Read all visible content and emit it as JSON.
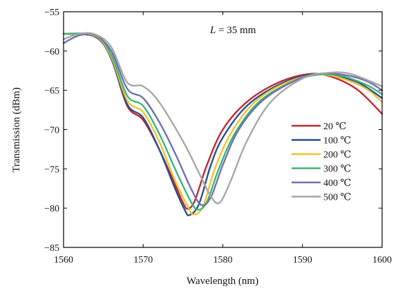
{
  "chart_data": {
    "type": "line",
    "title": "",
    "annotation": "L = 35 mm",
    "annotation_parts": {
      "var": "L",
      "rest": " = 35 mm"
    },
    "xlabel": "Wavelength (nm)",
    "ylabel": "Transmission (dBm)",
    "xlim": [
      1560,
      1600
    ],
    "ylim": [
      -85,
      -55
    ],
    "xticks": [
      1560,
      1570,
      1580,
      1590,
      1600
    ],
    "yticks": [
      -85,
      -80,
      -75,
      -70,
      -65,
      -60,
      -55
    ],
    "grid": false,
    "legend_position": "right-middle",
    "series": [
      {
        "name": "20 ℃",
        "color": "#c0282e",
        "points": [
          [
            1560,
            -57.8
          ],
          [
            1564,
            -58.2
          ],
          [
            1566,
            -61
          ],
          [
            1568,
            -67
          ],
          [
            1570,
            -68.8
          ],
          [
            1572,
            -72.5
          ],
          [
            1574,
            -77
          ],
          [
            1575,
            -79.3
          ],
          [
            1575.6,
            -80.1
          ],
          [
            1576.5,
            -79
          ],
          [
            1578,
            -74.5
          ],
          [
            1580,
            -70
          ],
          [
            1583,
            -66.5
          ],
          [
            1587,
            -64
          ],
          [
            1591,
            -62.9
          ],
          [
            1594,
            -63.4
          ],
          [
            1597,
            -65
          ],
          [
            1600,
            -68
          ]
        ]
      },
      {
        "name": "100 ℃",
        "color": "#274f8f",
        "points": [
          [
            1560,
            -57.8
          ],
          [
            1564,
            -58.2
          ],
          [
            1566,
            -61
          ],
          [
            1568,
            -66.8
          ],
          [
            1570,
            -68.5
          ],
          [
            1572,
            -72.5
          ],
          [
            1574,
            -77.5
          ],
          [
            1575.2,
            -80.2
          ],
          [
            1575.8,
            -80.9
          ],
          [
            1577,
            -79.5
          ],
          [
            1578.5,
            -74.5
          ],
          [
            1580,
            -71
          ],
          [
            1583,
            -67
          ],
          [
            1587,
            -64.3
          ],
          [
            1591,
            -63
          ],
          [
            1594,
            -63.2
          ],
          [
            1597,
            -64
          ],
          [
            1600,
            -66
          ]
        ]
      },
      {
        "name": "200 ℃",
        "color": "#eec12e",
        "points": [
          [
            1560,
            -57.8
          ],
          [
            1564,
            -58.1
          ],
          [
            1566,
            -60.8
          ],
          [
            1568,
            -66.3
          ],
          [
            1570,
            -67.8
          ],
          [
            1572,
            -71.5
          ],
          [
            1574,
            -76.5
          ],
          [
            1575.6,
            -79.8
          ],
          [
            1576.3,
            -80.8
          ],
          [
            1577.5,
            -79.8
          ],
          [
            1579,
            -75
          ],
          [
            1581,
            -70.5
          ],
          [
            1584,
            -66.5
          ],
          [
            1588,
            -64
          ],
          [
            1592,
            -63
          ],
          [
            1595,
            -63.5
          ],
          [
            1598,
            -64.8
          ],
          [
            1600,
            -66.5
          ]
        ]
      },
      {
        "name": "300 ℃",
        "color": "#3ab57b",
        "points": [
          [
            1560,
            -57.8
          ],
          [
            1564,
            -58
          ],
          [
            1566,
            -60.5
          ],
          [
            1568,
            -65.7
          ],
          [
            1570,
            -67
          ],
          [
            1572,
            -70.5
          ],
          [
            1574,
            -75
          ],
          [
            1576,
            -79.2
          ],
          [
            1576.9,
            -80.2
          ],
          [
            1578,
            -79.2
          ],
          [
            1579.5,
            -75
          ],
          [
            1581.5,
            -70.5
          ],
          [
            1584.5,
            -66.5
          ],
          [
            1588.5,
            -64
          ],
          [
            1592,
            -63
          ],
          [
            1595,
            -63.2
          ],
          [
            1598,
            -64.3
          ],
          [
            1600,
            -65.5
          ]
        ]
      },
      {
        "name": "400 ℃",
        "color": "#7070ac",
        "points": [
          [
            1560,
            -59
          ],
          [
            1562,
            -58
          ],
          [
            1564,
            -58
          ],
          [
            1566,
            -60
          ],
          [
            1568,
            -64.8
          ],
          [
            1570,
            -66
          ],
          [
            1572,
            -69
          ],
          [
            1574,
            -73
          ],
          [
            1576,
            -77.5
          ],
          [
            1577.3,
            -79.6
          ],
          [
            1578.5,
            -78.6
          ],
          [
            1580,
            -74.5
          ],
          [
            1582,
            -70
          ],
          [
            1585,
            -66.3
          ],
          [
            1589,
            -63.8
          ],
          [
            1592,
            -62.9
          ],
          [
            1595,
            -63
          ],
          [
            1598,
            -63.8
          ],
          [
            1600,
            -65
          ]
        ]
      },
      {
        "name": "500 ℃",
        "color": "#a6a6a6",
        "points": [
          [
            1560,
            -58.5
          ],
          [
            1562,
            -57.8
          ],
          [
            1564,
            -57.9
          ],
          [
            1566,
            -59.5
          ],
          [
            1568,
            -64
          ],
          [
            1570,
            -64.5
          ],
          [
            1572,
            -66.5
          ],
          [
            1575,
            -71.5
          ],
          [
            1577,
            -75.5
          ],
          [
            1578.5,
            -78.5
          ],
          [
            1579.6,
            -79.3
          ],
          [
            1581,
            -76.5
          ],
          [
            1583,
            -71.5
          ],
          [
            1586,
            -66.5
          ],
          [
            1590,
            -63.5
          ],
          [
            1593,
            -62.8
          ],
          [
            1596,
            -62.9
          ],
          [
            1600,
            -64.5
          ]
        ]
      }
    ]
  }
}
